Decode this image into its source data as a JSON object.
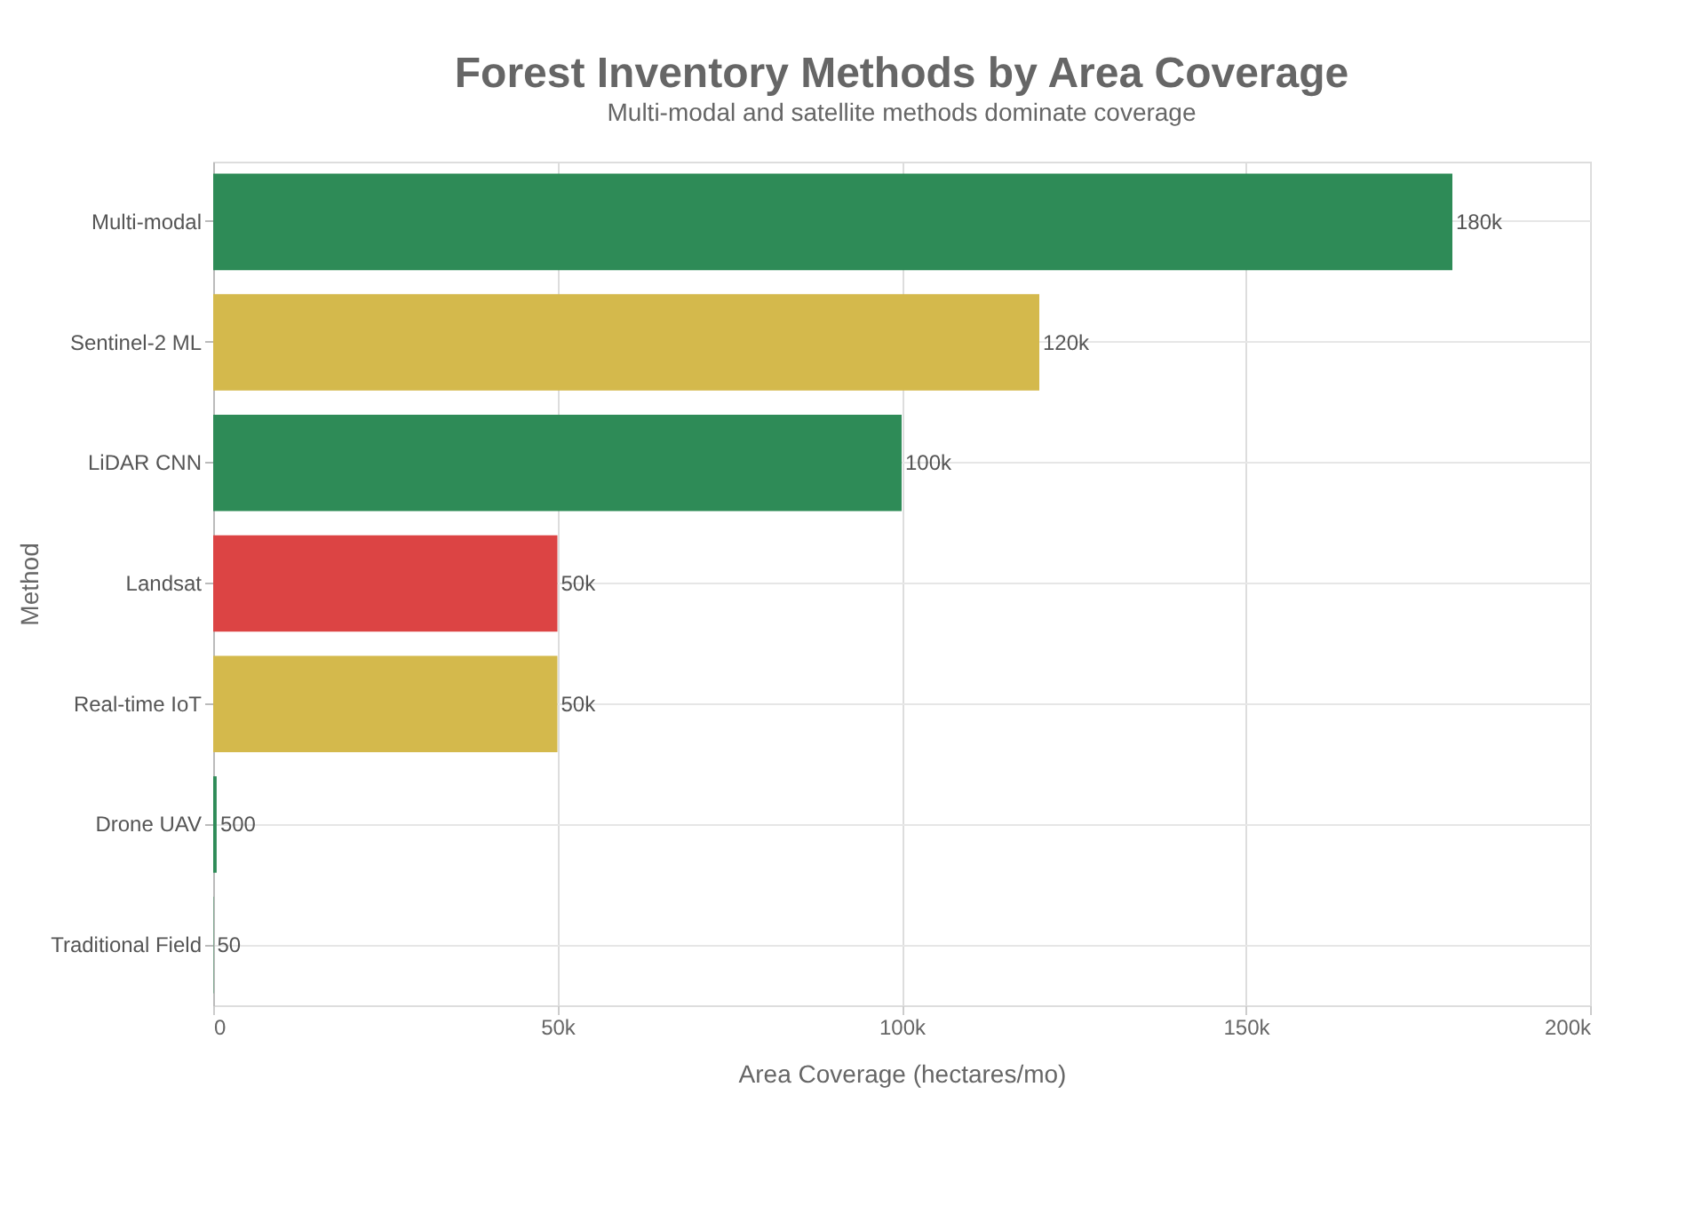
{
  "chart_data": {
    "type": "bar",
    "orientation": "horizontal",
    "title": "Forest Inventory Methods by Area Coverage",
    "subtitle": "Multi-modal and satellite methods dominate coverage",
    "xlabel": "Area Coverage (hectares/mo)",
    "ylabel": "Method",
    "categories": [
      "Multi-modal",
      "Sentinel-2 ML",
      "LiDAR CNN",
      "Landsat",
      "Real-time IoT",
      "Drone UAV",
      "Traditional Field"
    ],
    "values": [
      180000,
      120000,
      100000,
      50000,
      50000,
      500,
      50
    ],
    "colors": [
      "#2e8b57",
      "#d4b94c",
      "#2e8b57",
      "#dc4444",
      "#d4b94c",
      "#2e8b57",
      "#2e8b57"
    ],
    "value_labels": [
      "180k",
      "120k",
      "100k",
      "50k",
      "50k",
      "500",
      "50"
    ],
    "xlim": [
      0,
      200000
    ],
    "xticks": [
      0,
      {
        "value": 50000,
        "label": "50k"
      },
      {
        "value": 100000,
        "label": "100k"
      },
      {
        "value": 150000,
        "label": "150k"
      },
      {
        "value": 200000,
        "label": "200k"
      }
    ],
    "grid": true
  }
}
